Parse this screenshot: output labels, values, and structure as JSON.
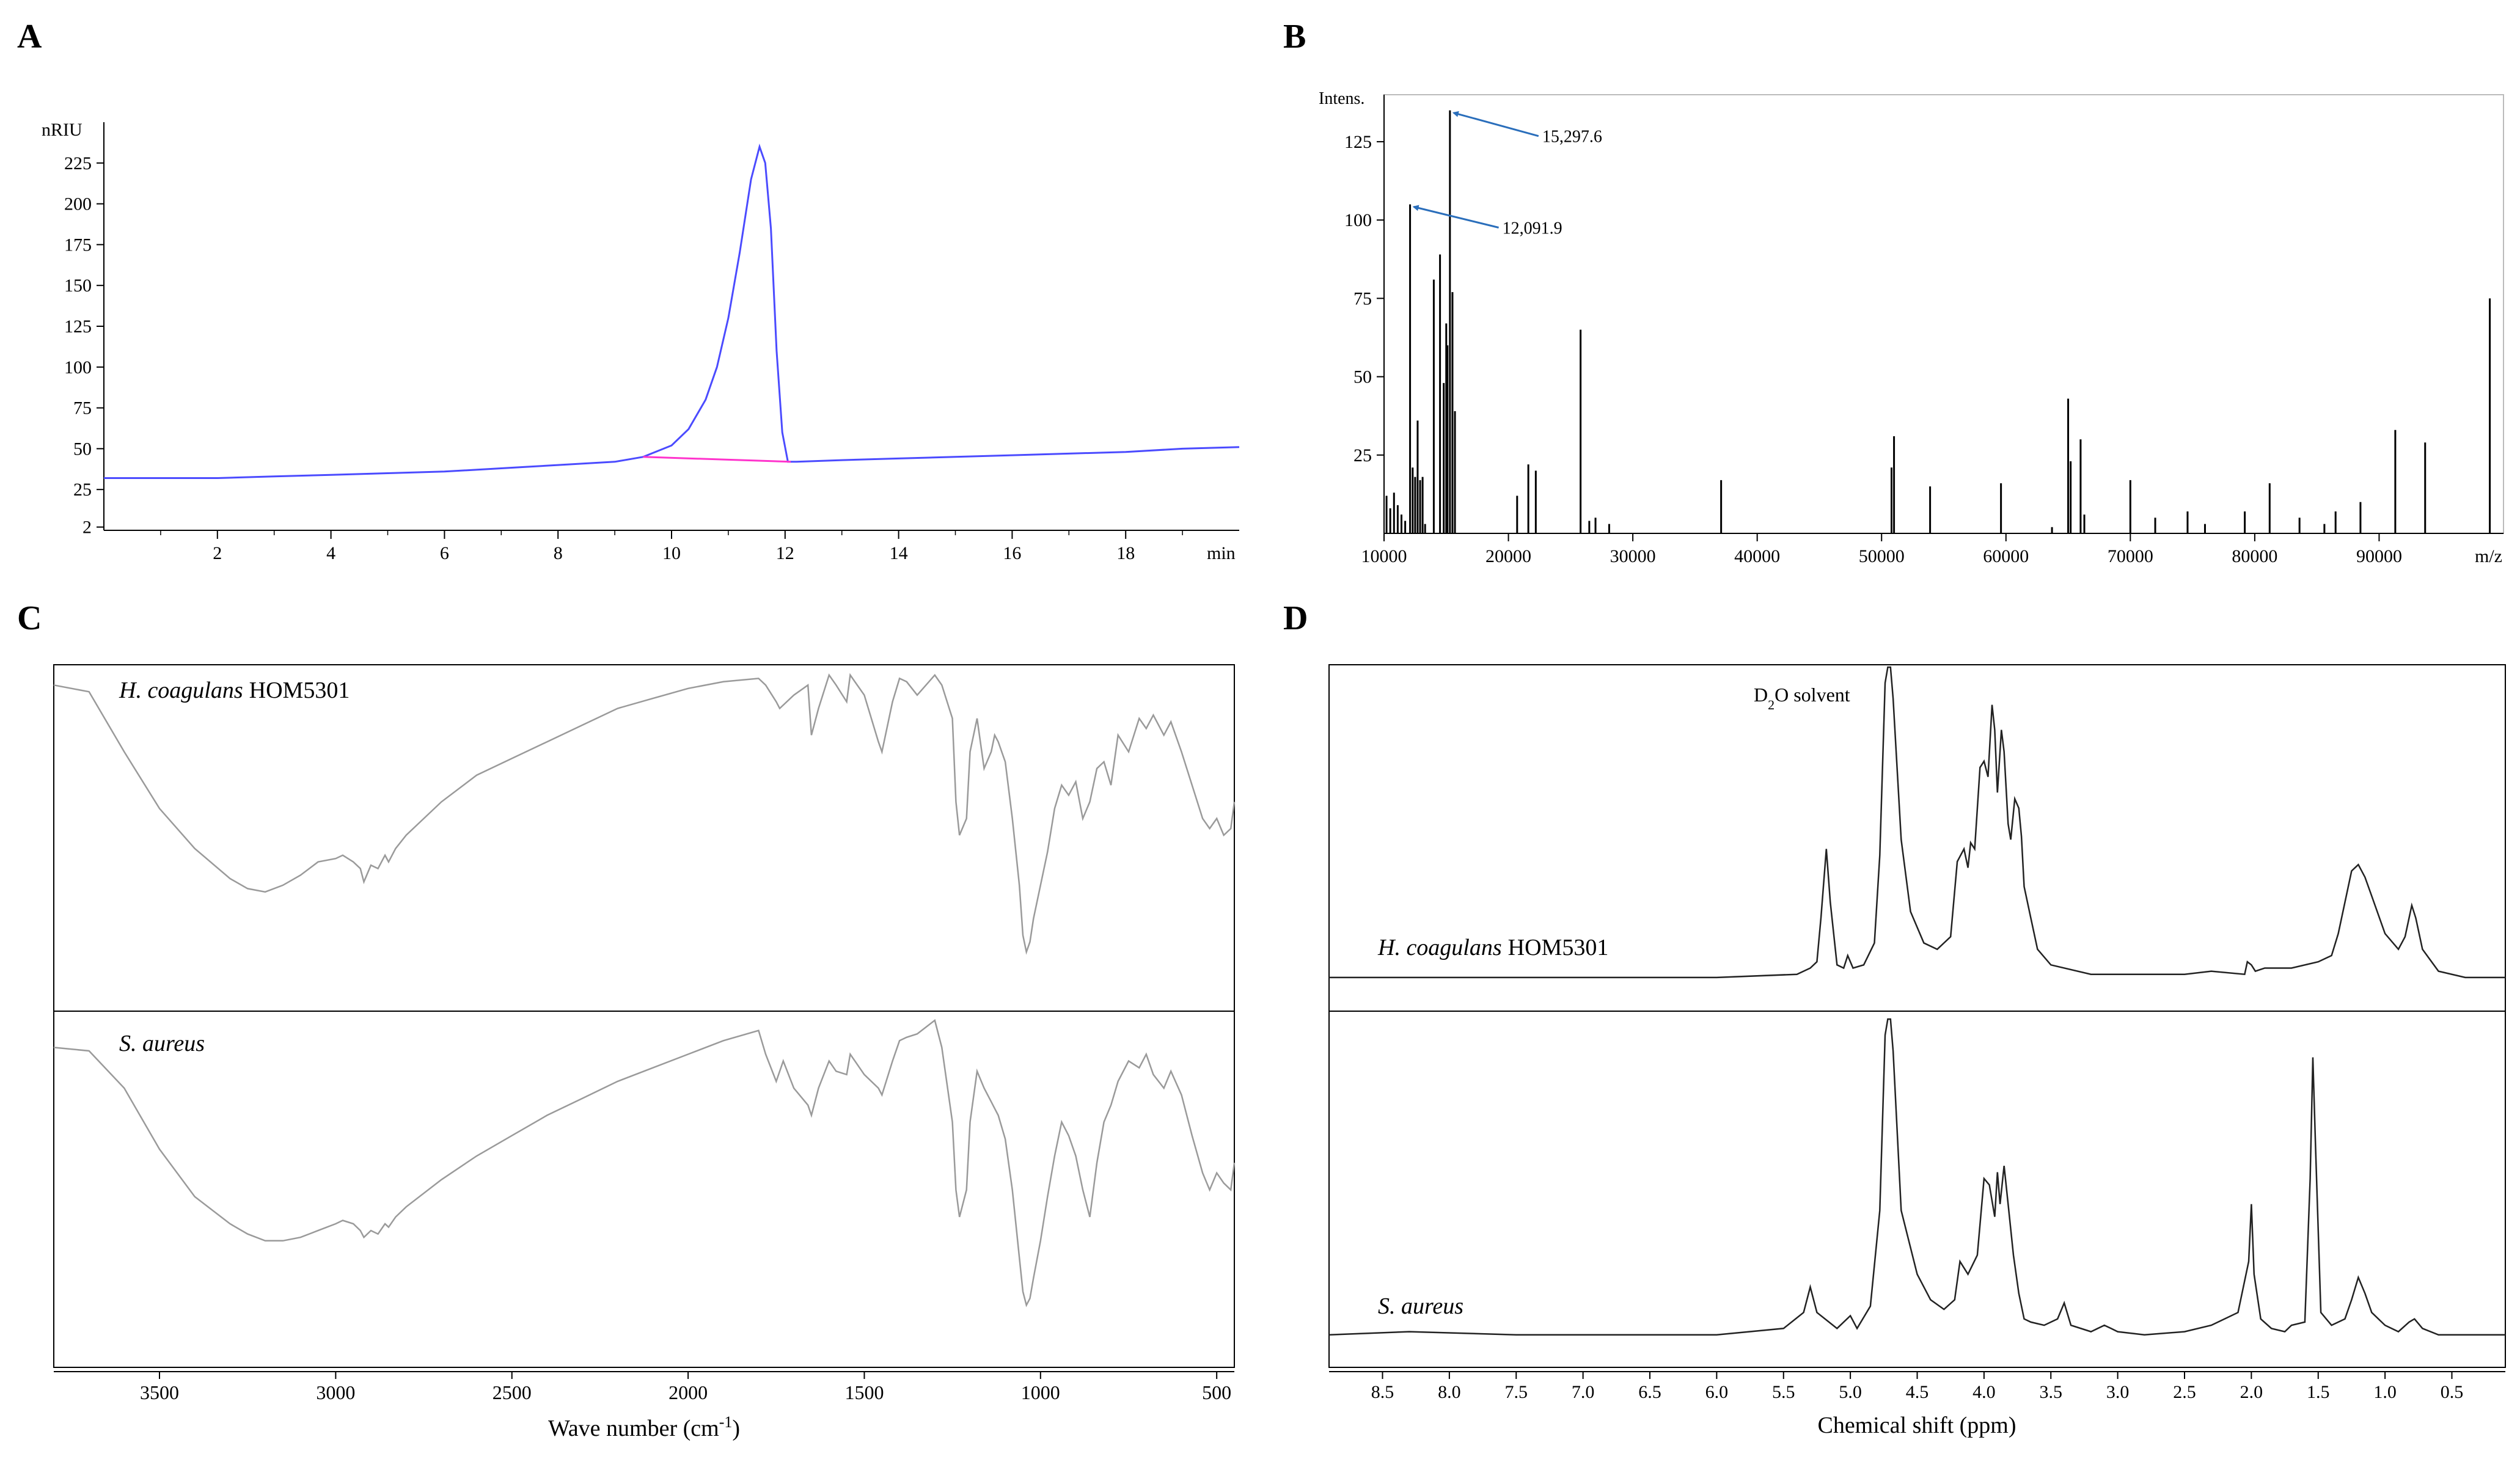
{
  "panels": {
    "A": {
      "letter": "A"
    },
    "B": {
      "letter": "B"
    },
    "C": {
      "letter": "C"
    },
    "D": {
      "letter": "D"
    }
  },
  "chart_data": [
    {
      "id": "A",
      "type": "line",
      "title": "",
      "xlabel": "min",
      "ylabel": "nRIU",
      "xlim": [
        0,
        20
      ],
      "ylim": [
        0,
        250
      ],
      "xticks": [
        2,
        4,
        6,
        8,
        10,
        12,
        14,
        16,
        18
      ],
      "yticks": [
        2,
        25,
        50,
        75,
        100,
        125,
        150,
        175,
        200,
        225
      ],
      "colors": {
        "trace": "#4b4bff",
        "baseline": "#ff33cc"
      },
      "series": [
        {
          "name": "RI signal",
          "x": [
            0,
            1,
            2,
            3,
            4,
            5,
            6,
            7,
            8,
            9,
            9.5,
            10,
            10.3,
            10.6,
            10.8,
            11,
            11.2,
            11.4,
            11.55,
            11.65,
            11.75,
            11.85,
            11.95,
            12.05,
            12.2,
            13,
            14,
            15,
            16,
            17,
            18,
            19,
            20
          ],
          "y": [
            32,
            32,
            32,
            33,
            34,
            35,
            36,
            38,
            40,
            42,
            45,
            52,
            62,
            80,
            100,
            130,
            170,
            215,
            235,
            225,
            185,
            110,
            60,
            42,
            42,
            43,
            44,
            45,
            46,
            47,
            48,
            50,
            51
          ]
        },
        {
          "name": "Integration baseline",
          "x": [
            9.5,
            12.1
          ],
          "y": [
            45,
            42
          ]
        }
      ]
    },
    {
      "id": "B",
      "type": "bar",
      "title": "",
      "xlabel": "m/z",
      "ylabel": "Intens.",
      "xlim": [
        10000,
        100000
      ],
      "ylim": [
        0,
        140
      ],
      "xticks": [
        10000,
        20000,
        30000,
        40000,
        50000,
        60000,
        70000,
        80000,
        90000
      ],
      "yticks": [
        25,
        50,
        75,
        100,
        125
      ],
      "colors": {
        "peak": "#000000",
        "arrow": "#2a6ebb"
      },
      "x": [
        10200,
        10500,
        10800,
        11100,
        11400,
        11700,
        12091.9,
        12300,
        12500,
        12700,
        12900,
        13100,
        13300,
        14000,
        14500,
        14800,
        15000,
        15100,
        15297.6,
        15500,
        15700,
        20700,
        21600,
        22200,
        25800,
        26500,
        27000,
        28100,
        37100,
        50800,
        51000,
        53900,
        59600,
        63700,
        65000,
        65200,
        66000,
        66300,
        70000,
        72000,
        74600,
        76000,
        79200,
        81200,
        83600,
        85600,
        86500,
        88500,
        91300,
        93700,
        98900
      ],
      "y": [
        12,
        8,
        13,
        9,
        6,
        4,
        105,
        21,
        18,
        36,
        17,
        18,
        3,
        81,
        89,
        48,
        67,
        60,
        135,
        77,
        39,
        12,
        22,
        20,
        65,
        4,
        5,
        3,
        17,
        21,
        31,
        15,
        16,
        2,
        43,
        23,
        30,
        6,
        17,
        5,
        7,
        3,
        7,
        16,
        5,
        3,
        7,
        10,
        33,
        29,
        75
      ],
      "annotations": [
        {
          "text": "15,297.6",
          "x": 15297.6,
          "y": 135
        },
        {
          "text": "12,091.9",
          "x": 12091.9,
          "y": 105
        }
      ]
    },
    {
      "id": "C",
      "type": "line",
      "title": "",
      "xlabel": "Wave number (cm",
      "xlabel_sup": "-1",
      "xlabel_tail": ")",
      "ylabel": "",
      "xlim": [
        3800,
        450
      ],
      "ylim": [
        0,
        100
      ],
      "xticks": [
        3500,
        3000,
        2500,
        2000,
        1500,
        1000,
        500
      ],
      "colors": {
        "spectrum": "#9a9a9a"
      },
      "series": [
        {
          "name": "H. coagulans HOM5301",
          "label_italic": "H. coagulans",
          "label_normal": "HOM5301",
          "x": [
            3800,
            3700,
            3600,
            3500,
            3400,
            3300,
            3250,
            3200,
            3150,
            3100,
            3050,
            3000,
            2980,
            2950,
            2930,
            2920,
            2900,
            2880,
            2860,
            2850,
            2830,
            2800,
            2700,
            2600,
            2500,
            2400,
            2300,
            2200,
            2100,
            2000,
            1900,
            1800,
            1780,
            1750,
            1740,
            1700,
            1660,
            1650,
            1630,
            1600,
            1580,
            1550,
            1540,
            1500,
            1460,
            1450,
            1420,
            1400,
            1380,
            1350,
            1300,
            1280,
            1250,
            1240,
            1230,
            1210,
            1200,
            1180,
            1160,
            1140,
            1130,
            1120,
            1100,
            1080,
            1060,
            1050,
            1040,
            1030,
            1020,
            1000,
            980,
            960,
            940,
            920,
            900,
            880,
            860,
            840,
            820,
            800,
            780,
            750,
            720,
            700,
            680,
            650,
            630,
            600,
            570,
            540,
            520,
            500,
            480,
            460,
            450
          ],
          "y": [
            95,
            93,
            75,
            58,
            46,
            37,
            34,
            33,
            35,
            38,
            42,
            43,
            44,
            42,
            40,
            36,
            41,
            40,
            44,
            42,
            46,
            50,
            60,
            68,
            73,
            78,
            83,
            88,
            91,
            94,
            96,
            97,
            95,
            90,
            88,
            92,
            95,
            80,
            88,
            98,
            95,
            90,
            98,
            92,
            78,
            75,
            90,
            97,
            96,
            92,
            98,
            95,
            85,
            60,
            50,
            55,
            75,
            85,
            70,
            75,
            80,
            78,
            72,
            55,
            35,
            20,
            15,
            18,
            25,
            35,
            45,
            58,
            65,
            62,
            66,
            55,
            60,
            70,
            72,
            65,
            80,
            75,
            85,
            82,
            86,
            80,
            84,
            75,
            65,
            55,
            52,
            55,
            50,
            52,
            60
          ]
        },
        {
          "name": "S. aureus",
          "label_italic": "S. aureus",
          "label_normal": "",
          "x": [
            3800,
            3700,
            3600,
            3500,
            3400,
            3300,
            3250,
            3200,
            3150,
            3100,
            3050,
            3000,
            2980,
            2950,
            2930,
            2920,
            2900,
            2880,
            2860,
            2850,
            2830,
            2800,
            2700,
            2600,
            2500,
            2400,
            2300,
            2200,
            2100,
            2000,
            1900,
            1800,
            1780,
            1750,
            1730,
            1700,
            1660,
            1650,
            1630,
            1600,
            1580,
            1550,
            1540,
            1500,
            1460,
            1450,
            1420,
            1400,
            1380,
            1350,
            1300,
            1280,
            1250,
            1240,
            1230,
            1210,
            1200,
            1180,
            1160,
            1140,
            1130,
            1120,
            1100,
            1080,
            1060,
            1050,
            1040,
            1030,
            1020,
            1000,
            980,
            960,
            940,
            920,
            900,
            880,
            860,
            840,
            820,
            800,
            780,
            750,
            720,
            700,
            680,
            650,
            630,
            600,
            570,
            540,
            520,
            500,
            480,
            460,
            450
          ],
          "y": [
            92,
            91,
            80,
            62,
            48,
            40,
            37,
            35,
            35,
            36,
            38,
            40,
            41,
            40,
            38,
            36,
            38,
            37,
            40,
            39,
            42,
            45,
            53,
            60,
            66,
            72,
            77,
            82,
            86,
            90,
            94,
            97,
            90,
            82,
            88,
            80,
            75,
            72,
            80,
            88,
            85,
            84,
            90,
            84,
            80,
            78,
            88,
            94,
            95,
            96,
            100,
            92,
            70,
            50,
            42,
            50,
            70,
            85,
            80,
            76,
            74,
            72,
            65,
            50,
            30,
            20,
            16,
            18,
            24,
            35,
            48,
            60,
            70,
            66,
            60,
            50,
            42,
            58,
            70,
            75,
            82,
            88,
            86,
            90,
            84,
            80,
            85,
            78,
            66,
            55,
            50,
            55,
            52,
            50,
            58
          ]
        }
      ]
    },
    {
      "id": "D",
      "type": "line",
      "title": "",
      "xlabel": "Chemical shift (ppm)",
      "ylabel": "",
      "xlim": [
        8.9,
        0.1
      ],
      "ylim": [
        0,
        100
      ],
      "xticks": [
        "8.5",
        "8.0",
        "7.5",
        "7.0",
        "6.5",
        "6.0",
        "5.5",
        "5.0",
        "4.5",
        "4.0",
        "3.5",
        "3.0",
        "2.5",
        "2.0",
        "1.5",
        "1.0",
        "0.5"
      ],
      "annotation": {
        "text": "D",
        "sub": "2",
        "tail": "O solvent"
      },
      "colors": {
        "spectrum": "#222222"
      },
      "series": [
        {
          "name": "H. coagulans HOM5301",
          "label_italic": "H. coagulans",
          "label_normal": "HOM5301",
          "x": [
            8.9,
            7.5,
            6.0,
            5.4,
            5.3,
            5.25,
            5.22,
            5.18,
            5.15,
            5.1,
            5.05,
            5.02,
            4.98,
            4.9,
            4.82,
            4.78,
            4.74,
            4.72,
            4.7,
            4.68,
            4.62,
            4.55,
            4.45,
            4.35,
            4.25,
            4.2,
            4.15,
            4.12,
            4.1,
            4.07,
            4.03,
            4.0,
            3.97,
            3.94,
            3.92,
            3.9,
            3.87,
            3.85,
            3.82,
            3.8,
            3.77,
            3.74,
            3.72,
            3.7,
            3.65,
            3.6,
            3.5,
            3.2,
            2.5,
            2.3,
            2.05,
            2.03,
            2.0,
            1.97,
            1.9,
            1.7,
            1.5,
            1.4,
            1.35,
            1.3,
            1.25,
            1.2,
            1.15,
            1.1,
            1.0,
            0.9,
            0.85,
            0.8,
            0.77,
            0.72,
            0.6,
            0.4,
            0.1
          ],
          "y": [
            1,
            1,
            1,
            2,
            4,
            6,
            20,
            42,
            25,
            5,
            4,
            8,
            4,
            5,
            12,
            40,
            95,
            100,
            100,
            90,
            45,
            22,
            12,
            10,
            14,
            38,
            42,
            36,
            44,
            42,
            68,
            70,
            65,
            88,
            80,
            60,
            80,
            73,
            50,
            45,
            58,
            55,
            46,
            30,
            20,
            10,
            5,
            2,
            2,
            3,
            2,
            6,
            5,
            3,
            4,
            4,
            6,
            8,
            15,
            25,
            35,
            37,
            33,
            27,
            15,
            10,
            14,
            24,
            20,
            10,
            3,
            1,
            1
          ]
        },
        {
          "name": "S. aureus",
          "label_italic": "S. aureus",
          "label_normal": "",
          "x": [
            8.9,
            8.3,
            7.5,
            6.0,
            5.5,
            5.35,
            5.3,
            5.25,
            5.1,
            5.0,
            4.95,
            4.85,
            4.78,
            4.74,
            4.72,
            4.7,
            4.68,
            4.62,
            4.5,
            4.4,
            4.3,
            4.22,
            4.18,
            4.12,
            4.05,
            4.0,
            3.96,
            3.92,
            3.9,
            3.88,
            3.85,
            3.82,
            3.78,
            3.74,
            3.7,
            3.65,
            3.55,
            3.45,
            3.4,
            3.35,
            3.2,
            3.1,
            3.05,
            3.0,
            2.8,
            2.5,
            2.3,
            2.1,
            2.02,
            2.0,
            1.98,
            1.93,
            1.85,
            1.75,
            1.7,
            1.6,
            1.56,
            1.54,
            1.52,
            1.48,
            1.4,
            1.3,
            1.25,
            1.2,
            1.15,
            1.1,
            1.0,
            0.9,
            0.82,
            0.78,
            0.72,
            0.6,
            0.3,
            0.1
          ],
          "y": [
            1,
            2,
            1,
            1,
            3,
            8,
            16,
            8,
            3,
            7,
            3,
            10,
            40,
            95,
            100,
            100,
            90,
            40,
            20,
            12,
            9,
            12,
            24,
            20,
            26,
            50,
            48,
            38,
            52,
            42,
            54,
            42,
            26,
            14,
            6,
            5,
            4,
            6,
            11,
            4,
            2,
            4,
            3,
            2,
            1,
            2,
            4,
            8,
            24,
            42,
            20,
            6,
            3,
            2,
            4,
            5,
            50,
            88,
            60,
            8,
            4,
            6,
            12,
            19,
            14,
            8,
            4,
            2,
            5,
            6,
            3,
            1,
            1,
            1
          ]
        }
      ]
    }
  ]
}
